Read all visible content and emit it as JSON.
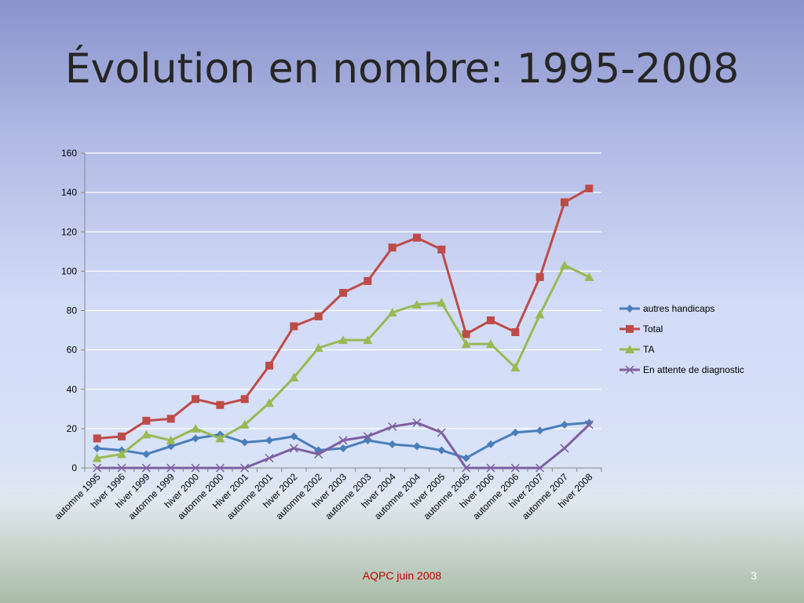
{
  "slide": {
    "title": "Évolution en nombre: 1995-2008",
    "footer": "AQPC juin 2008",
    "page_number": "3"
  },
  "chart_data": {
    "type": "line",
    "title": "",
    "xlabel": "",
    "ylabel": "",
    "ylim": [
      0,
      160
    ],
    "yticks": [
      0,
      20,
      40,
      60,
      80,
      100,
      120,
      140,
      160
    ],
    "grid": true,
    "legend_position": "right",
    "categories": [
      "automne 1995",
      "hiver 1996",
      "hiver 1999",
      "automne 1999",
      "hiver 2000",
      "automne 2000",
      "Hiver 2001",
      "automne 2001",
      "hiver 2002",
      "automne 2002",
      "hiver 2003",
      "automne 2003",
      "hiver 2004",
      "automne 2004",
      "hiver 2005",
      "automne 2005",
      "hiver 2006",
      "automne 2006",
      "hiver 2007",
      "automne 2007",
      "hiver 2008"
    ],
    "series": [
      {
        "name": "autres handicaps",
        "color": "#4a7ebb",
        "marker": "diamond",
        "values": [
          10,
          9,
          7,
          11,
          15,
          17,
          13,
          14,
          16,
          9,
          10,
          14,
          12,
          11,
          9,
          5,
          12,
          18,
          19,
          22,
          23
        ]
      },
      {
        "name": "Total",
        "color": "#be4b48",
        "marker": "square",
        "values": [
          15,
          16,
          24,
          25,
          35,
          32,
          35,
          52,
          72,
          77,
          89,
          95,
          112,
          117,
          111,
          68,
          75,
          69,
          97,
          135,
          142
        ]
      },
      {
        "name": "TA",
        "color": "#98b954",
        "marker": "triangle",
        "values": [
          5,
          7,
          17,
          14,
          20,
          15,
          22,
          33,
          46,
          61,
          65,
          65,
          79,
          83,
          84,
          63,
          63,
          51,
          78,
          103,
          97
        ]
      },
      {
        "name": "En attente de diagnostic",
        "color": "#7d60a0",
        "marker": "x",
        "values": [
          0,
          0,
          0,
          0,
          0,
          0,
          0,
          5,
          10,
          7,
          14,
          16,
          21,
          23,
          18,
          0,
          0,
          0,
          0,
          10,
          22
        ]
      }
    ]
  }
}
